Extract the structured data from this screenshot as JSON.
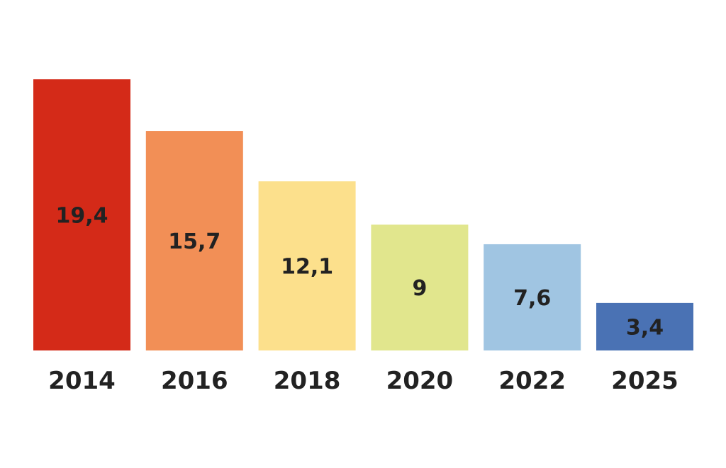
{
  "chart_data": {
    "type": "bar",
    "categories": [
      "2014",
      "2016",
      "2018",
      "2020",
      "2022",
      "2025"
    ],
    "values": [
      19.4,
      15.7,
      12.1,
      9,
      7.6,
      3.4
    ],
    "value_labels": [
      "19,4",
      "15,7",
      "12,1",
      "9",
      "7,6",
      "3,4"
    ],
    "colors": [
      "#d42a18",
      "#f28f56",
      "#fce08c",
      "#e1e68d",
      "#a0c5e2",
      "#4a72b4"
    ],
    "ylim": [
      0,
      19.4
    ],
    "grid": false,
    "legend": "none"
  }
}
